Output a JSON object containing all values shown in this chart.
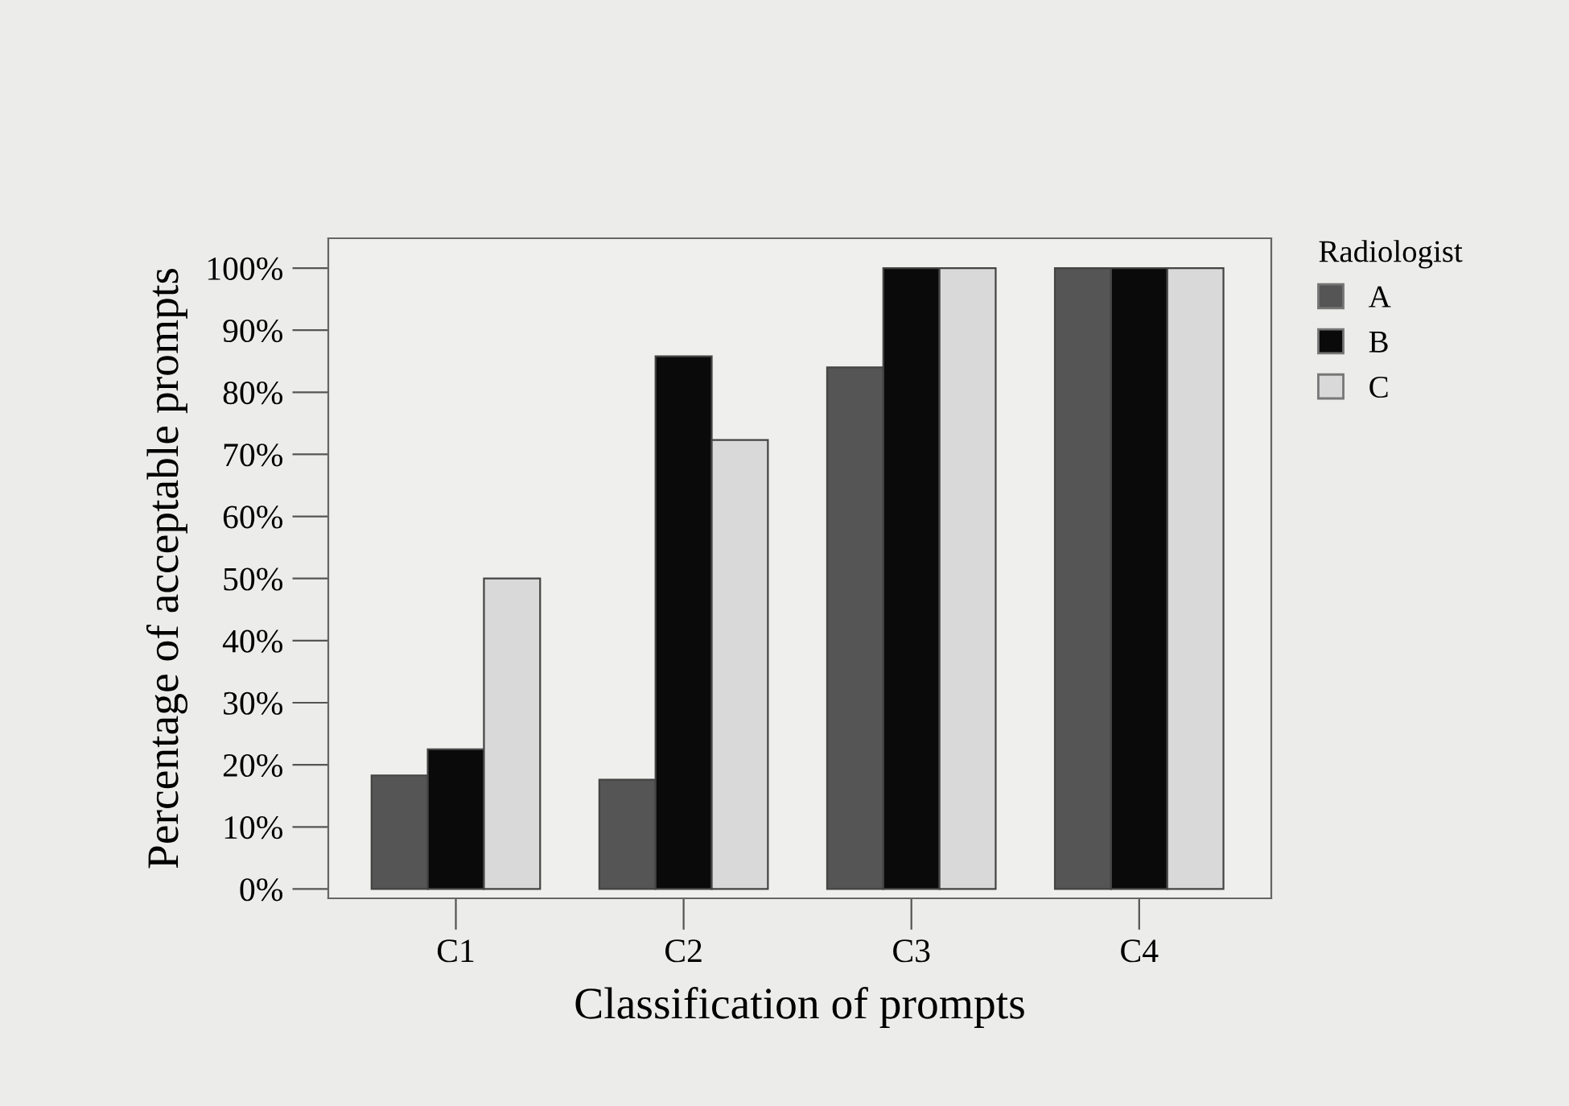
{
  "chart_data": {
    "type": "bar",
    "categories": [
      "C1",
      "C2",
      "C3",
      "C4"
    ],
    "xlabel": "Classification of prompts",
    "ylabel": "Percentage of acceptable prompts",
    "legend_title": "Radiologist",
    "legend": "top right",
    "ylim": [
      -1.5,
      104.8
    ],
    "yticks": [
      {
        "value": 0,
        "label": "0%"
      },
      {
        "value": 10,
        "label": "10%"
      },
      {
        "value": 20,
        "label": "20%"
      },
      {
        "value": 30,
        "label": "30%"
      },
      {
        "value": 40,
        "label": "40%"
      },
      {
        "value": 50,
        "label": "50%"
      },
      {
        "value": 60,
        "label": "60%"
      },
      {
        "value": 70,
        "label": "70%"
      },
      {
        "value": 80,
        "label": "80%"
      },
      {
        "value": 90,
        "label": "90%"
      },
      {
        "value": 100,
        "label": "100%"
      }
    ],
    "grid": false,
    "series": [
      {
        "name": "A",
        "color": "#555555",
        "values": [
          18.3,
          17.6,
          84,
          100
        ]
      },
      {
        "name": "B",
        "color": "#0a0a0a",
        "values": [
          22.5,
          85.8,
          100,
          100
        ]
      },
      {
        "name": "C",
        "color": "#d9d9d9",
        "values": [
          50,
          72.3,
          100,
          100
        ]
      }
    ]
  }
}
